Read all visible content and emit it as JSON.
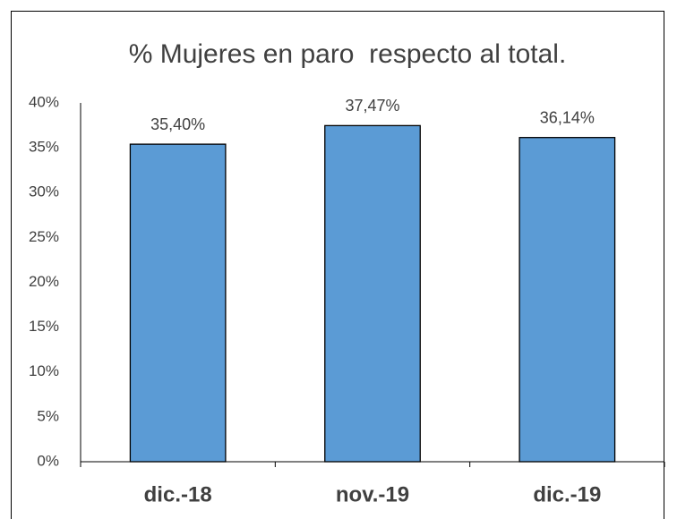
{
  "chart_data": {
    "type": "bar",
    "title": "% Mujeres en paro  respecto al total.",
    "categories": [
      "dic.-18",
      "nov.-19",
      "dic.-19"
    ],
    "values": [
      35.4,
      37.47,
      36.14
    ],
    "value_labels": [
      "35,40%",
      "37,47%",
      "36,14%"
    ],
    "color": "#5b9bd5",
    "ylim": [
      0,
      40
    ],
    "yticks": [
      {
        "value": 0,
        "label": "0%"
      },
      {
        "value": 5,
        "label": "5%"
      },
      {
        "value": 10,
        "label": "10%"
      },
      {
        "value": 15,
        "label": "15%"
      },
      {
        "value": 20,
        "label": "20%"
      },
      {
        "value": 25,
        "label": "25%"
      },
      {
        "value": 30,
        "label": "30%"
      },
      {
        "value": 35,
        "label": "35%"
      },
      {
        "value": 40,
        "label": "40%"
      }
    ],
    "grid": false
  }
}
